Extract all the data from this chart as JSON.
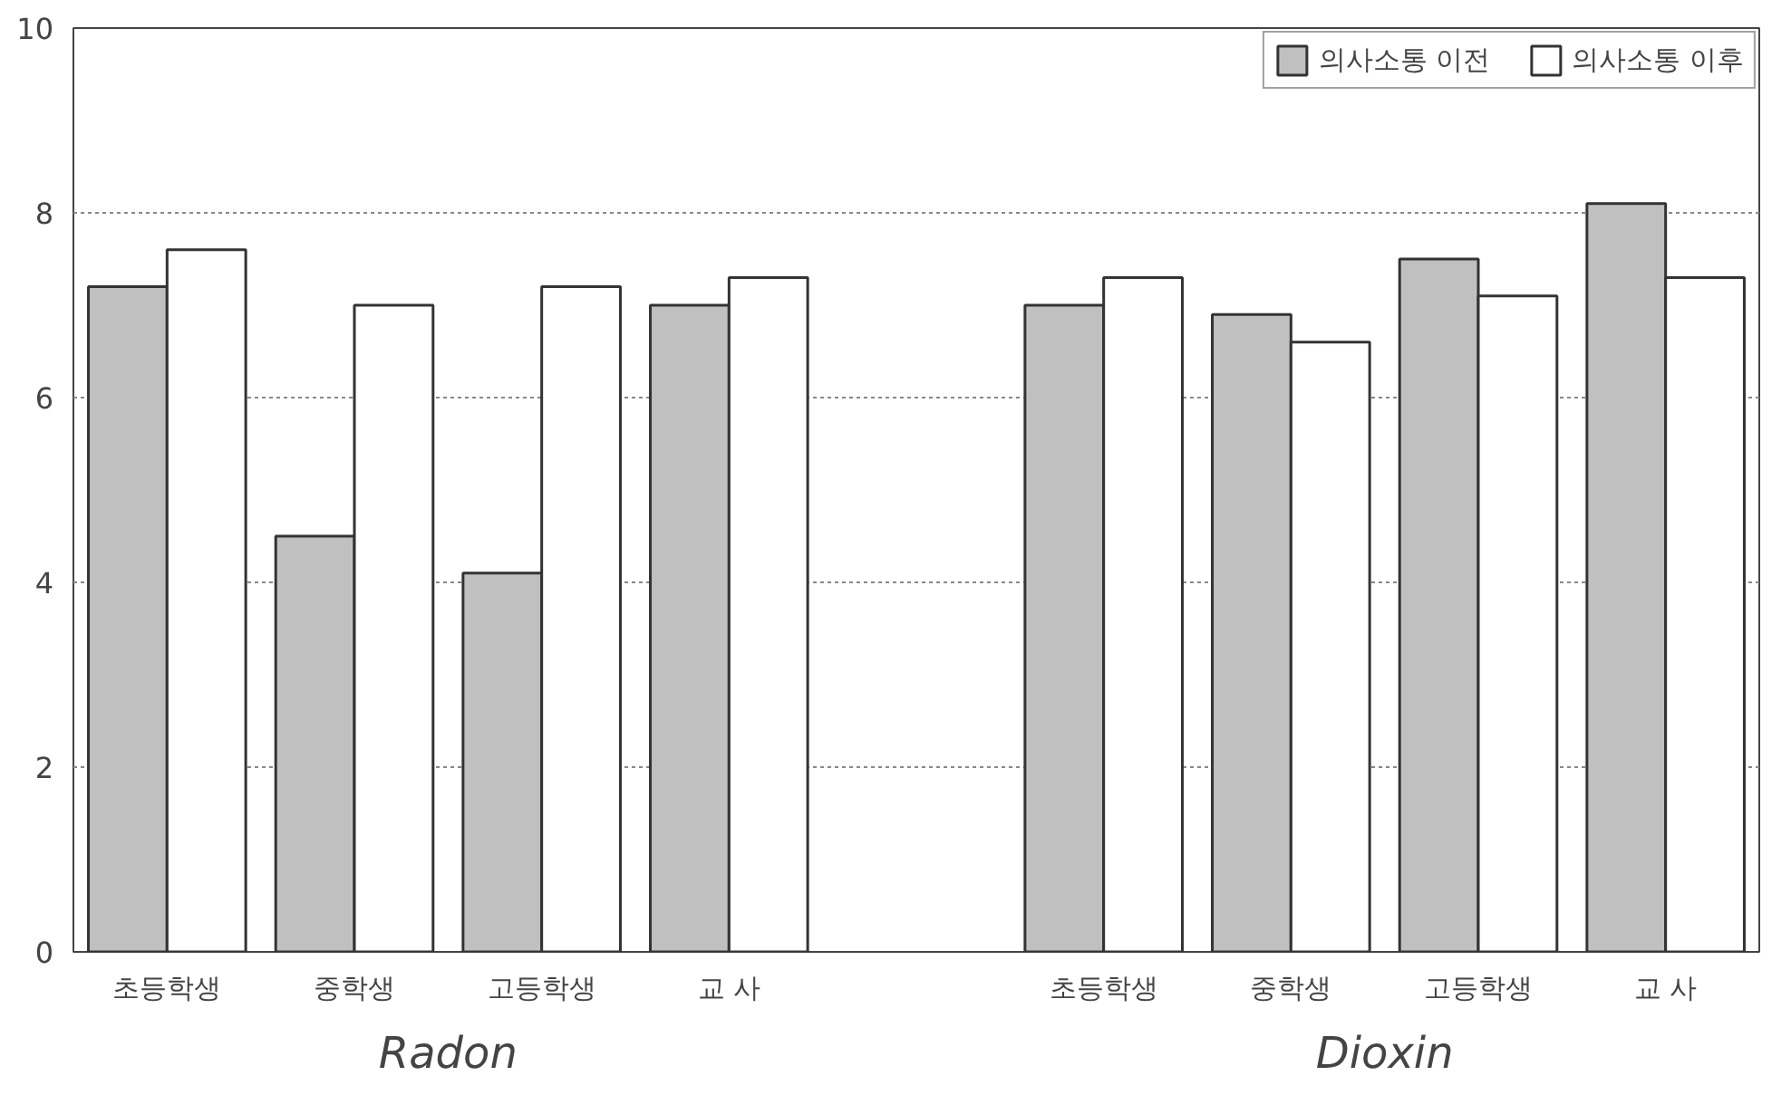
{
  "chart_data": {
    "type": "bar",
    "categories": [
      "초등학생",
      "중학생",
      "고등학생",
      "교 사",
      null,
      "초등학생",
      "중학생",
      "고등학생",
      "교 사"
    ],
    "series": [
      {
        "name": "의사소통 이전",
        "color": "#c0c0c0",
        "values": [
          7.2,
          4.5,
          4.1,
          7.0,
          null,
          7.0,
          6.9,
          7.5,
          8.1
        ]
      },
      {
        "name": "의사소통 이후",
        "color": "#ffffff",
        "values": [
          7.6,
          7.0,
          7.2,
          7.3,
          null,
          7.3,
          6.6,
          7.1,
          7.3
        ]
      }
    ],
    "ylim": [
      0,
      10
    ],
    "yticks": [
      0,
      2,
      4,
      6,
      8,
      10
    ],
    "grid": "y",
    "legend": "top right",
    "annotations": [
      "Radon",
      "Dioxin"
    ]
  }
}
